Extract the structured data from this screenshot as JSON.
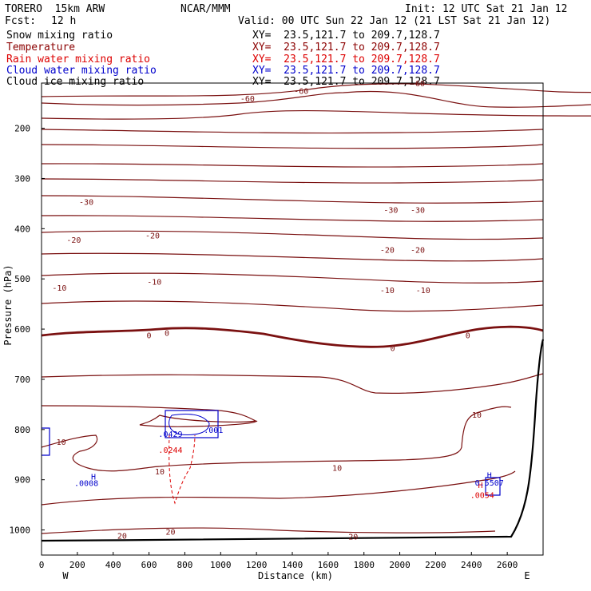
{
  "header": {
    "model": "TORERO  15km ARW",
    "center": "NCAR/MMM",
    "init": "Init: 12 UTC Sat 21 Jan 12",
    "fcst_label": "Fcst:",
    "fcst_value": "12 h",
    "valid": "Valid: 00 UTC Sun 22 Jan 12 (21 LST Sat 21 Jan 12)",
    "fields": [
      {
        "name": "Snow mixing ratio",
        "color": "#000000"
      },
      {
        "name": "Temperature",
        "color": "#8b0000"
      },
      {
        "name": "Rain water mixing ratio",
        "color": "#dd0000"
      },
      {
        "name": "Cloud water mixing ratio",
        "color": "#0000cc"
      },
      {
        "name": "Cloud ice mixing ratio",
        "color": "#000000"
      }
    ],
    "xy_text": "XY=  23.5,121.7 to 209.7,128.7"
  },
  "chart_data": {
    "type": "contour",
    "xlabel": "Distance (km)",
    "ylabel": "Pressure (hPa)",
    "xlim": [
      0,
      2800
    ],
    "ylim": [
      1050,
      110
    ],
    "x_ticks": [
      0,
      200,
      400,
      600,
      800,
      1000,
      1200,
      1400,
      1600,
      1800,
      2000,
      2200,
      2400,
      2600
    ],
    "y_ticks": [
      200,
      300,
      400,
      500,
      600,
      700,
      800,
      900,
      1000
    ],
    "x_end_labels": {
      "left": "W",
      "right": "E"
    },
    "isotherm_labels": [
      {
        "text": "-60",
        "x": 2100,
        "p": 110
      },
      {
        "text": "-60",
        "x": 1150,
        "p": 140
      },
      {
        "text": "-60",
        "x": 1450,
        "p": 125
      },
      {
        "text": "-30",
        "x": 250,
        "p": 346
      },
      {
        "text": "-30",
        "x": 1950,
        "p": 362
      },
      {
        "text": "-30",
        "x": 2100,
        "p": 362
      },
      {
        "text": "-20",
        "x": 180,
        "p": 422
      },
      {
        "text": "-20",
        "x": 620,
        "p": 413
      },
      {
        "text": "-20",
        "x": 1930,
        "p": 442
      },
      {
        "text": "-20",
        "x": 2100,
        "p": 442
      },
      {
        "text": "-10",
        "x": 100,
        "p": 517
      },
      {
        "text": "-10",
        "x": 630,
        "p": 505
      },
      {
        "text": "-10",
        "x": 1930,
        "p": 522
      },
      {
        "text": "-10",
        "x": 2130,
        "p": 522
      },
      {
        "text": "0",
        "x": 600,
        "p": 612
      },
      {
        "text": "0",
        "x": 700,
        "p": 607
      },
      {
        "text": "0",
        "x": 1960,
        "p": 637
      },
      {
        "text": "0",
        "x": 2380,
        "p": 612
      },
      {
        "text": "10",
        "x": 110,
        "p": 824
      },
      {
        "text": "10",
        "x": 660,
        "p": 883
      },
      {
        "text": "10",
        "x": 1650,
        "p": 876
      },
      {
        "text": "10",
        "x": 2430,
        "p": 770
      },
      {
        "text": "20",
        "x": 450,
        "p": 1011
      },
      {
        "text": "20",
        "x": 720,
        "p": 1003
      },
      {
        "text": "20",
        "x": 1740,
        "p": 1013
      }
    ],
    "cloud_labels": [
      {
        "text": ".0008",
        "x": 250,
        "p": 906,
        "color": "#0000cc"
      },
      {
        "text": ".001",
        "x": 960,
        "p": 800,
        "color": "#0000cc"
      },
      {
        "text": ".0429",
        "x": 720,
        "p": 808,
        "color": "#0000cc"
      },
      {
        "text": ".0244",
        "x": 720,
        "p": 840,
        "color": "#dd0000"
      },
      {
        "text": "H",
        "x": 290,
        "p": 893,
        "color": "#0000cc"
      },
      {
        "text": "H",
        "x": 2500,
        "p": 890,
        "color": "#0000cc"
      },
      {
        "text": "H",
        "x": 2450,
        "p": 910,
        "color": "#dd0000"
      },
      {
        "text": "0.5507",
        "x": 2500,
        "p": 905,
        "color": "#0000cc"
      },
      {
        "text": ".0054",
        "x": 2460,
        "p": 930,
        "color": "#dd0000"
      }
    ]
  }
}
